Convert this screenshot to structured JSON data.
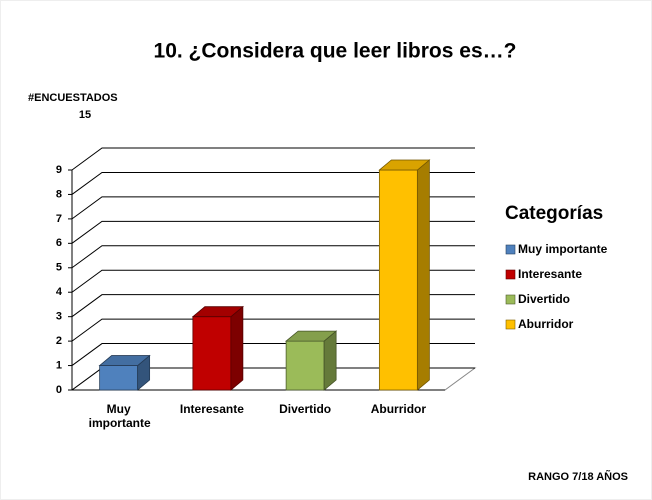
{
  "chart_data": {
    "type": "bar",
    "title": "10. ¿Considera que leer libros es…?",
    "y_label": "#ENCUESTADOS",
    "respondents": 15,
    "legend_title": "Categorías",
    "footer": "RANGO 7/18 AÑOS",
    "categories": [
      "Muy importante",
      "Interesante",
      "Divertido",
      "Aburridor"
    ],
    "values": [
      1,
      3,
      2,
      9
    ],
    "colors": [
      "#4f81bd",
      "#c00000",
      "#9bbb59",
      "#ffc000"
    ],
    "ylim": [
      0,
      9
    ],
    "yticks": [
      0,
      1,
      2,
      3,
      4,
      5,
      6,
      7,
      8,
      9
    ],
    "grid": true,
    "legend": "right"
  }
}
